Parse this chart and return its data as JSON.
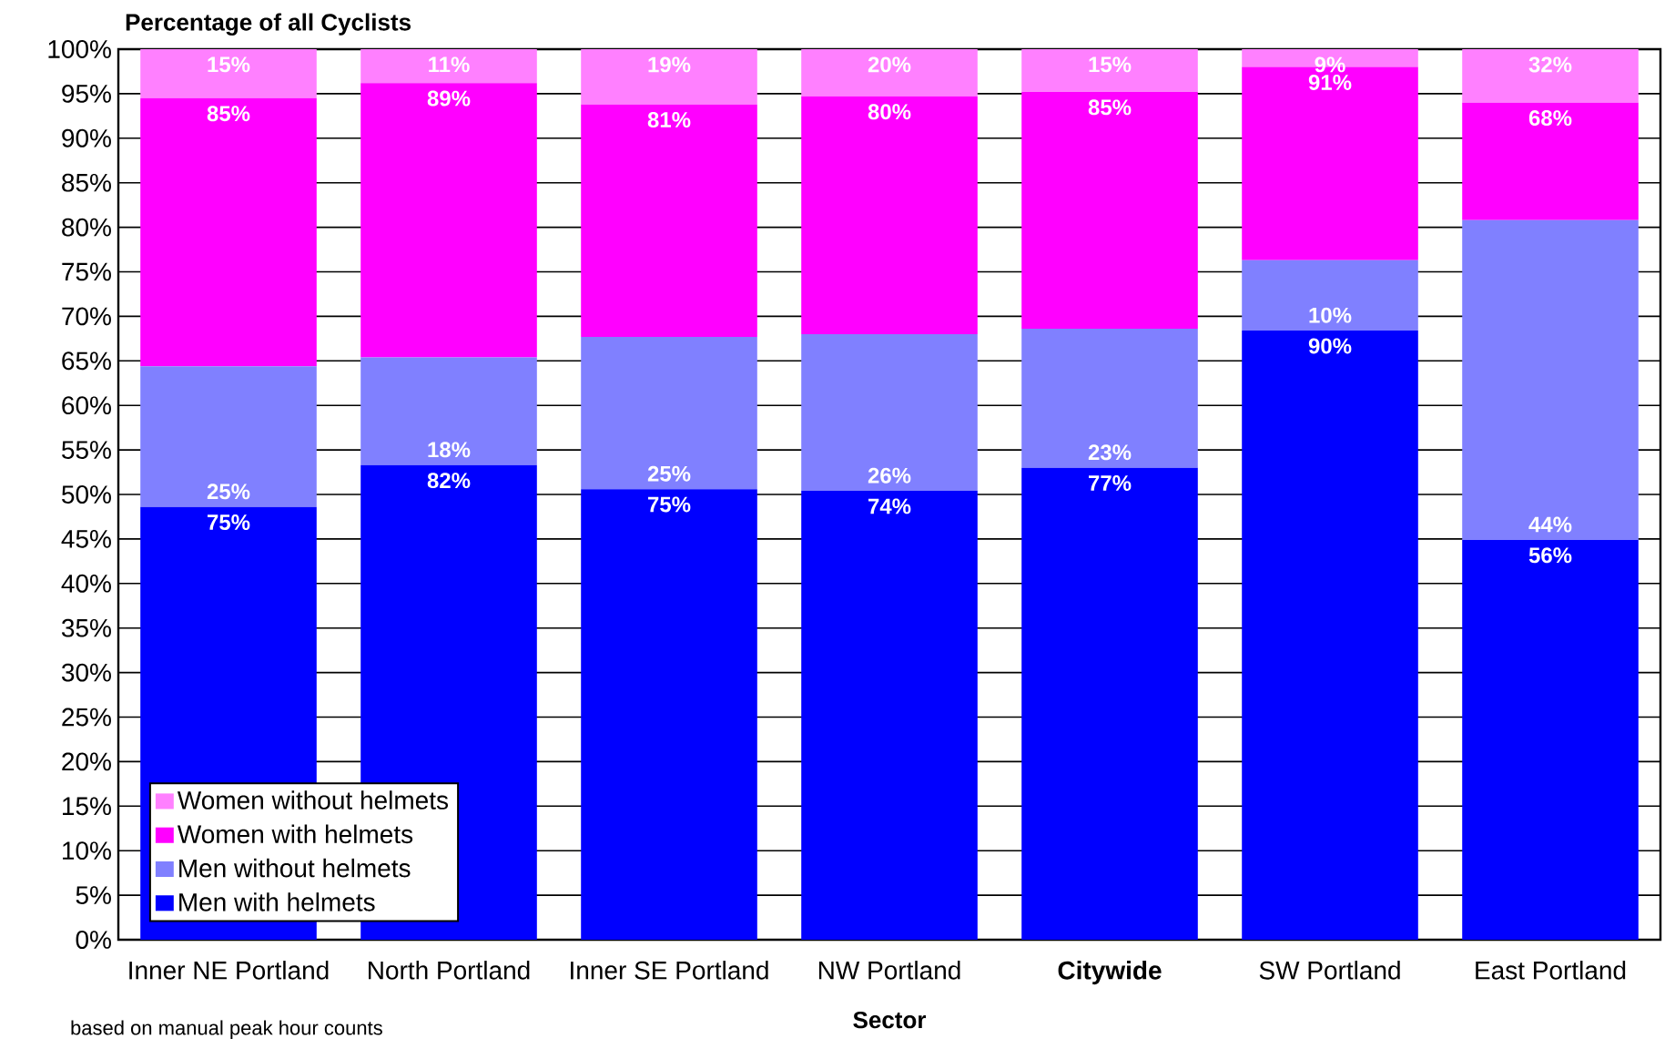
{
  "chart_data": {
    "type": "bar",
    "stacked": true,
    "title": "Percentage of all Cyclists",
    "xlabel": "Sector",
    "annotations": [
      "based on manual peak hour counts",
      {
        "text": "15%",
        "x": "Inner NE Portland",
        "y": 100
      },
      {
        "text": "85%",
        "x": "Inner NE Portland",
        "y": 94.5
      },
      {
        "text": "25%",
        "x": "Inner NE Portland",
        "y": 48.6
      },
      {
        "text": "75%",
        "x": "Inner NE Portland",
        "y": 48.6
      },
      {
        "text": "11%",
        "x": "North Portland",
        "y": 100
      },
      {
        "text": "89%",
        "x": "North Portland",
        "y": 96.2
      },
      {
        "text": "18%",
        "x": "North Portland",
        "y": 53.3
      },
      {
        "text": "82%",
        "x": "North Portland",
        "y": 53.3
      },
      {
        "text": "19%",
        "x": "Inner SE Portland",
        "y": 100
      },
      {
        "text": "81%",
        "x": "Inner SE Portland",
        "y": 93.8
      },
      {
        "text": "25%",
        "x": "Inner SE Portland",
        "y": 50.6
      },
      {
        "text": "75%",
        "x": "Inner SE Portland",
        "y": 50.6
      },
      {
        "text": "20%",
        "x": "NW Portland",
        "y": 100
      },
      {
        "text": "80%",
        "x": "NW Portland",
        "y": 94.7
      },
      {
        "text": "26%",
        "x": "NW Portland",
        "y": 50.4
      },
      {
        "text": "74%",
        "x": "NW Portland",
        "y": 50.4
      },
      {
        "text": "15%",
        "x": "Citywide",
        "y": 100
      },
      {
        "text": "85%",
        "x": "Citywide",
        "y": 95.2
      },
      {
        "text": "23%",
        "x": "Citywide",
        "y": 53.0
      },
      {
        "text": "77%",
        "x": "Citywide",
        "y": 53.0
      },
      {
        "text": "9%",
        "x": "SW Portland",
        "y": 100
      },
      {
        "text": "91%",
        "x": "SW Portland",
        "y": 98.0
      },
      {
        "text": "10%",
        "x": "SW Portland",
        "y": 68.4
      },
      {
        "text": "90%",
        "x": "SW Portland",
        "y": 68.4
      },
      {
        "text": "32%",
        "x": "East Portland",
        "y": 100
      },
      {
        "text": "68%",
        "x": "East Portland",
        "y": 94.0
      },
      {
        "text": "44%",
        "x": "East Portland",
        "y": 44.9
      },
      {
        "text": "56%",
        "x": "East Portland",
        "y": 44.9
      }
    ],
    "categories": [
      "Inner NE Portland",
      "North Portland",
      "Inner SE Portland",
      "NW Portland",
      "Citywide",
      "SW Portland",
      "East Portland"
    ],
    "ylim": [
      0,
      100
    ],
    "yticks": [
      {
        "value": 0,
        "label": "0%"
      },
      {
        "value": 5,
        "label": "5%"
      },
      {
        "value": 10,
        "label": "10%"
      },
      {
        "value": 15,
        "label": "15%"
      },
      {
        "value": 20,
        "label": "20%"
      },
      {
        "value": 25,
        "label": "25%"
      },
      {
        "value": 30,
        "label": "30%"
      },
      {
        "value": 35,
        "label": "35%"
      },
      {
        "value": 40,
        "label": "40%"
      },
      {
        "value": 45,
        "label": "45%"
      },
      {
        "value": 50,
        "label": "50%"
      },
      {
        "value": 55,
        "label": "55%"
      },
      {
        "value": 60,
        "label": "60%"
      },
      {
        "value": 65,
        "label": "65%"
      },
      {
        "value": 70,
        "label": "70%"
      },
      {
        "value": 75,
        "label": "75%"
      },
      {
        "value": 80,
        "label": "80%"
      },
      {
        "value": 85,
        "label": "85%"
      },
      {
        "value": 90,
        "label": "90%"
      },
      {
        "value": 95,
        "label": "95%"
      },
      {
        "value": 100,
        "label": "100%"
      }
    ],
    "grid": "y",
    "legend": "bottom left",
    "series": [
      {
        "name": "Men with helmets",
        "color": "#0000ff",
        "values": [
          48.6,
          53.3,
          50.6,
          50.4,
          53.0,
          68.4,
          44.9
        ]
      },
      {
        "name": "Men without helmets",
        "color": "#8080ff",
        "values": [
          15.8,
          12.1,
          17.1,
          17.6,
          15.6,
          7.9,
          35.9
        ]
      },
      {
        "name": "Women with helmets",
        "color": "#ff00ff",
        "values": [
          30.1,
          30.8,
          26.1,
          26.7,
          26.6,
          21.7,
          13.2
        ]
      },
      {
        "name": "Women without helmets",
        "color": "#ff80ff",
        "values": [
          5.5,
          3.8,
          6.2,
          5.3,
          4.8,
          2.0,
          6.0
        ]
      }
    ]
  }
}
